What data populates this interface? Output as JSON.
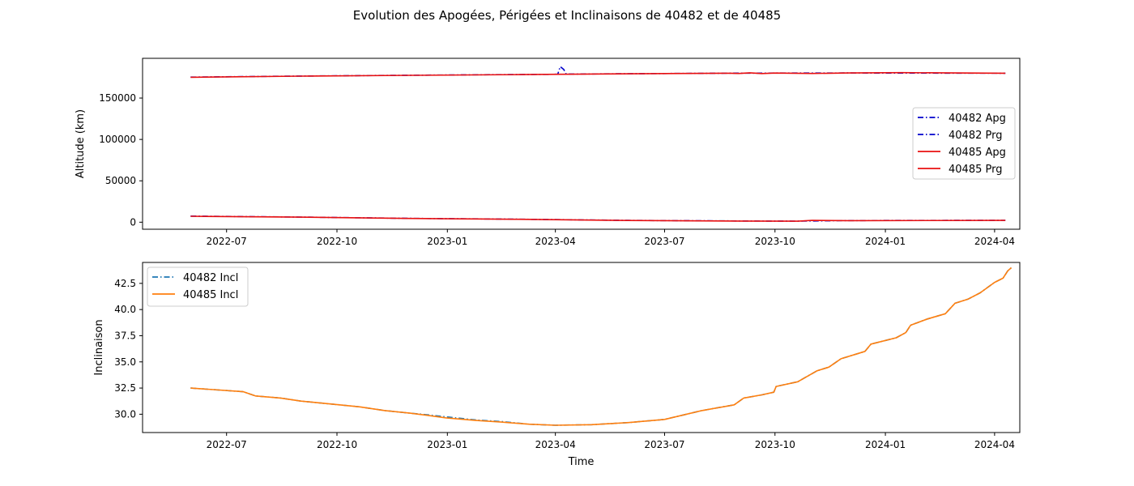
{
  "figure": {
    "title": "Evolution des Apogées, Périgées et Inclinaisons de 40482 et de 40485"
  },
  "chart_data": [
    {
      "type": "line",
      "title": "",
      "xlabel": "",
      "ylabel": "Altitude (km)",
      "x_ticks": [
        "2022-07",
        "2022-10",
        "2023-01",
        "2023-04",
        "2023-07",
        "2023-10",
        "2024-01",
        "2024-04"
      ],
      "xlim": [
        "2022-04-22",
        "2024-04-22"
      ],
      "y_ticks": [
        0,
        50000,
        100000,
        150000
      ],
      "ylim": [
        -8500,
        198000
      ],
      "legend_position": "center-right",
      "grid": false,
      "series": [
        {
          "name": "40482 Apg",
          "color": "#0000cc",
          "style": "dashdot",
          "points": [
            [
              "2022-06-01",
              175300
            ],
            [
              "2022-09-01",
              176600
            ],
            [
              "2022-12-01",
              177500
            ],
            [
              "2023-03-01",
              178400
            ],
            [
              "2023-04-03",
              178700
            ],
            [
              "2023-04-05",
              188000
            ],
            [
              "2023-04-08",
              184500
            ],
            [
              "2023-04-10",
              178900
            ],
            [
              "2023-06-01",
              179400
            ],
            [
              "2023-09-01",
              180100
            ],
            [
              "2023-12-01",
              180300
            ],
            [
              "2024-04-10",
              180000
            ]
          ]
        },
        {
          "name": "40482 Prg",
          "color": "#0000cc",
          "style": "dashdot",
          "points": [
            [
              "2022-06-01",
              7400
            ],
            [
              "2022-09-01",
              6200
            ],
            [
              "2022-12-01",
              4600
            ],
            [
              "2023-03-01",
              3600
            ],
            [
              "2023-06-01",
              2200
            ],
            [
              "2023-09-01",
              1500
            ],
            [
              "2023-10-20",
              1300
            ],
            [
              "2023-12-01",
              2000
            ],
            [
              "2024-04-10",
              2300
            ]
          ]
        },
        {
          "name": "40485 Apg",
          "color": "#e81010",
          "style": "solid",
          "points": [
            [
              "2022-06-01",
              175100
            ],
            [
              "2022-09-01",
              176500
            ],
            [
              "2022-12-01",
              177400
            ],
            [
              "2023-03-01",
              178300
            ],
            [
              "2023-06-01",
              179300
            ],
            [
              "2023-08-25",
              180000
            ],
            [
              "2023-09-01",
              179700
            ],
            [
              "2023-09-10",
              180500
            ],
            [
              "2023-09-20",
              179600
            ],
            [
              "2023-10-01",
              180200
            ],
            [
              "2023-11-01",
              179700
            ],
            [
              "2023-12-01",
              180300
            ],
            [
              "2024-01-15",
              180700
            ],
            [
              "2024-04-10",
              180000
            ]
          ]
        },
        {
          "name": "40485 Prg",
          "color": "#e81010",
          "style": "solid",
          "points": [
            [
              "2022-06-01",
              7200
            ],
            [
              "2022-09-01",
              6100
            ],
            [
              "2022-12-01",
              4500
            ],
            [
              "2023-03-01",
              3500
            ],
            [
              "2023-06-01",
              2100
            ],
            [
              "2023-09-01",
              1400
            ],
            [
              "2023-10-20",
              1200
            ],
            [
              "2023-11-01",
              2200
            ],
            [
              "2023-12-01",
              1900
            ],
            [
              "2024-04-10",
              2200
            ]
          ]
        }
      ]
    },
    {
      "type": "line",
      "title": "",
      "xlabel": "Time",
      "ylabel": "Inclinaison",
      "x_ticks": [
        "2022-07",
        "2022-10",
        "2023-01",
        "2023-04",
        "2023-07",
        "2023-10",
        "2024-01",
        "2024-04"
      ],
      "xlim": [
        "2022-04-22",
        "2024-04-22"
      ],
      "y_ticks": [
        30.0,
        32.5,
        35.0,
        37.5,
        40.0,
        42.5
      ],
      "y_tick_labels": [
        "30.0",
        "32.5",
        "35.0",
        "37.5",
        "40.0",
        "42.5"
      ],
      "ylim": [
        28.25,
        44.5
      ],
      "legend_position": "top-left",
      "grid": false,
      "series": [
        {
          "name": "40482 Incl",
          "color": "#1f77b4",
          "style": "dashdot",
          "points": [
            [
              "2022-06-01",
              32.5
            ],
            [
              "2022-06-20",
              32.35
            ],
            [
              "2022-07-15",
              32.15
            ],
            [
              "2022-07-25",
              31.75
            ],
            [
              "2022-08-15",
              31.55
            ],
            [
              "2022-09-01",
              31.25
            ],
            [
              "2022-09-15",
              31.1
            ],
            [
              "2022-09-28",
              30.95
            ],
            [
              "2022-10-20",
              30.7
            ],
            [
              "2022-11-10",
              30.35
            ],
            [
              "2022-12-01",
              30.1
            ],
            [
              "2022-12-15",
              29.95
            ],
            [
              "2022-12-31",
              29.75
            ],
            [
              "2023-01-25",
              29.45
            ],
            [
              "2023-02-15",
              29.3
            ],
            [
              "2023-03-10",
              29.05
            ],
            [
              "2023-04-01",
              28.95
            ],
            [
              "2023-05-01",
              29.0
            ],
            [
              "2023-06-01",
              29.2
            ],
            [
              "2023-07-01",
              29.5
            ],
            [
              "2023-08-01",
              30.35
            ],
            [
              "2023-08-28",
              30.9
            ],
            [
              "2023-09-05",
              31.55
            ],
            [
              "2023-09-20",
              31.85
            ],
            [
              "2023-09-30",
              32.1
            ],
            [
              "2023-10-02",
              32.65
            ],
            [
              "2023-10-20",
              33.1
            ],
            [
              "2023-11-05",
              34.15
            ],
            [
              "2023-11-15",
              34.5
            ],
            [
              "2023-11-25",
              35.3
            ],
            [
              "2023-12-15",
              36.0
            ],
            [
              "2023-12-20",
              36.7
            ],
            [
              "2024-01-10",
              37.3
            ],
            [
              "2024-01-18",
              37.8
            ],
            [
              "2024-01-22",
              38.5
            ],
            [
              "2024-02-05",
              39.1
            ],
            [
              "2024-02-20",
              39.6
            ],
            [
              "2024-02-28",
              40.6
            ],
            [
              "2024-03-10",
              41.0
            ],
            [
              "2024-03-20",
              41.6
            ],
            [
              "2024-04-01",
              42.6
            ],
            [
              "2024-04-08",
              43.0
            ],
            [
              "2024-04-12",
              43.7
            ],
            [
              "2024-04-15",
              44.0
            ]
          ]
        },
        {
          "name": "40485 Incl",
          "color": "#ff7f0e",
          "style": "solid",
          "points": [
            [
              "2022-06-01",
              32.5
            ],
            [
              "2022-06-20",
              32.35
            ],
            [
              "2022-07-15",
              32.15
            ],
            [
              "2022-07-25",
              31.75
            ],
            [
              "2022-08-15",
              31.55
            ],
            [
              "2022-09-01",
              31.25
            ],
            [
              "2022-09-15",
              31.1
            ],
            [
              "2022-09-28",
              30.95
            ],
            [
              "2022-10-20",
              30.7
            ],
            [
              "2022-11-10",
              30.35
            ],
            [
              "2022-12-01",
              30.1
            ],
            [
              "2022-12-15",
              29.9
            ],
            [
              "2022-12-31",
              29.65
            ],
            [
              "2023-01-25",
              29.4
            ],
            [
              "2023-02-15",
              29.25
            ],
            [
              "2023-03-10",
              29.05
            ],
            [
              "2023-04-01",
              28.95
            ],
            [
              "2023-05-01",
              29.0
            ],
            [
              "2023-06-01",
              29.2
            ],
            [
              "2023-07-01",
              29.5
            ],
            [
              "2023-08-01",
              30.35
            ],
            [
              "2023-08-28",
              30.9
            ],
            [
              "2023-09-05",
              31.55
            ],
            [
              "2023-09-20",
              31.85
            ],
            [
              "2023-09-30",
              32.1
            ],
            [
              "2023-10-02",
              32.65
            ],
            [
              "2023-10-20",
              33.1
            ],
            [
              "2023-11-05",
              34.15
            ],
            [
              "2023-11-15",
              34.5
            ],
            [
              "2023-11-25",
              35.3
            ],
            [
              "2023-12-15",
              36.0
            ],
            [
              "2023-12-20",
              36.7
            ],
            [
              "2024-01-10",
              37.3
            ],
            [
              "2024-01-18",
              37.8
            ],
            [
              "2024-01-22",
              38.5
            ],
            [
              "2024-02-05",
              39.1
            ],
            [
              "2024-02-20",
              39.6
            ],
            [
              "2024-02-28",
              40.6
            ],
            [
              "2024-03-10",
              41.0
            ],
            [
              "2024-03-20",
              41.6
            ],
            [
              "2024-04-01",
              42.6
            ],
            [
              "2024-04-08",
              43.0
            ],
            [
              "2024-04-12",
              43.7
            ],
            [
              "2024-04-15",
              44.0
            ]
          ]
        }
      ]
    }
  ]
}
